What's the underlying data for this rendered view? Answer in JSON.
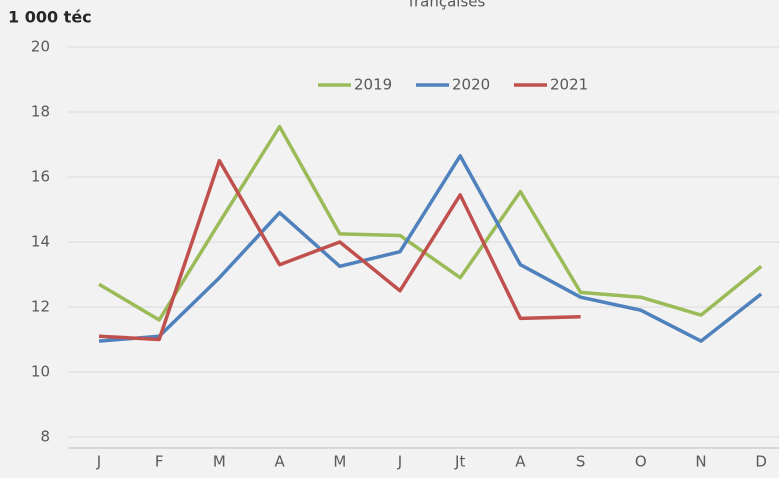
{
  "chart_data": {
    "type": "line",
    "title": "françaises",
    "y_label": "1 000 téc",
    "categories": [
      "J",
      "F",
      "M",
      "A",
      "M",
      "J",
      "Jt",
      "A",
      "S",
      "O",
      "N",
      "D"
    ],
    "series": [
      {
        "name": "2019",
        "color": "#9bbb59",
        "values": [
          12.7,
          11.6,
          14.6,
          17.55,
          14.25,
          14.2,
          12.9,
          15.55,
          12.45,
          12.3,
          11.75,
          13.25
        ]
      },
      {
        "name": "2020",
        "color": "#4f81bd",
        "values": [
          10.95,
          11.1,
          12.9,
          14.9,
          13.25,
          13.7,
          16.65,
          13.3,
          12.3,
          11.9,
          10.95,
          12.4
        ]
      },
      {
        "name": "2021",
        "color": "#c0504d",
        "values": [
          11.1,
          11.0,
          16.5,
          13.3,
          14.0,
          12.5,
          15.45,
          11.65,
          11.7,
          null,
          null,
          null
        ]
      }
    ],
    "ylim": [
      7.66,
      20
    ],
    "yticks": [
      8,
      10,
      12,
      14,
      16,
      18,
      20
    ],
    "grid": true,
    "legend": "top"
  }
}
